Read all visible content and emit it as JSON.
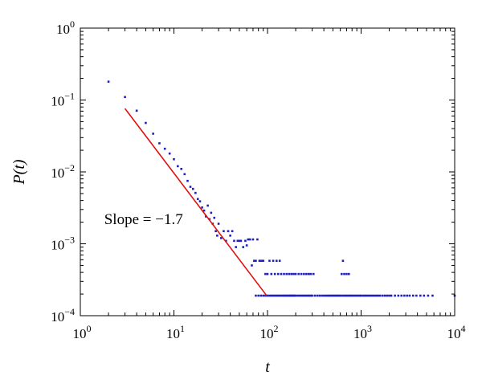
{
  "chart_data": {
    "type": "scatter",
    "title": "",
    "xlabel": "t",
    "ylabel": "P(t)",
    "x_scale": "log",
    "y_scale": "log",
    "xlim": [
      1,
      10000
    ],
    "ylim": [
      0.0001,
      1
    ],
    "grid": false,
    "x_ticks": [
      {
        "base": "10",
        "exp": "0",
        "value": 1
      },
      {
        "base": "10",
        "exp": "1",
        "value": 10
      },
      {
        "base": "10",
        "exp": "2",
        "value": 100
      },
      {
        "base": "10",
        "exp": "3",
        "value": 1000
      },
      {
        "base": "10",
        "exp": "4",
        "value": 10000
      }
    ],
    "y_ticks": [
      {
        "base": "10",
        "exp": "0",
        "value": 1
      },
      {
        "base": "10",
        "exp": "−1",
        "value": 0.1
      },
      {
        "base": "10",
        "exp": "−2",
        "value": 0.01
      },
      {
        "base": "10",
        "exp": "−3",
        "value": 0.001
      },
      {
        "base": "10",
        "exp": "−4",
        "value": 0.0001
      }
    ],
    "points": [
      [
        2,
        0.18
      ],
      [
        3,
        0.11
      ],
      [
        4,
        0.071
      ],
      [
        5,
        0.048
      ],
      [
        6,
        0.034
      ],
      [
        7,
        0.025
      ],
      [
        8,
        0.021
      ],
      [
        9,
        0.018
      ],
      [
        10,
        0.015
      ],
      [
        11,
        0.012
      ],
      [
        12,
        0.011
      ],
      [
        13,
        0.0093
      ],
      [
        14,
        0.0075
      ],
      [
        15,
        0.0062
      ],
      [
        16,
        0.0058
      ],
      [
        17,
        0.0051
      ],
      [
        18,
        0.0042
      ],
      [
        19,
        0.0039
      ],
      [
        20,
        0.0032
      ],
      [
        21,
        0.0029
      ],
      [
        22,
        0.0024
      ],
      [
        23,
        0.0034
      ],
      [
        24,
        0.0022
      ],
      [
        25,
        0.0027
      ],
      [
        26,
        0.0019
      ],
      [
        27,
        0.0023
      ],
      [
        28,
        0.0015
      ],
      [
        29,
        0.0013
      ],
      [
        30,
        0.0019
      ],
      [
        32,
        0.0012
      ],
      [
        34,
        0.0015
      ],
      [
        36,
        0.0011
      ],
      [
        38,
        0.0015
      ],
      [
        40,
        0.0013
      ],
      [
        42,
        0.0015
      ],
      [
        44,
        0.0011
      ],
      [
        46,
        0.0009
      ],
      [
        48,
        0.0011
      ],
      [
        50,
        0.0011
      ],
      [
        52,
        0.0011
      ],
      [
        55,
        0.0009
      ],
      [
        58,
        0.0011
      ],
      [
        60,
        0.00095
      ],
      [
        62,
        0.00115
      ],
      [
        65,
        0.00115
      ],
      [
        68,
        0.0005
      ],
      [
        70,
        0.00115
      ],
      [
        72,
        0.00058
      ],
      [
        75,
        0.00058
      ],
      [
        78,
        0.00115
      ],
      [
        82,
        0.00058
      ],
      [
        86,
        0.00058
      ],
      [
        90,
        0.00058
      ],
      [
        95,
        0.00038
      ],
      [
        100,
        0.00038
      ],
      [
        105,
        0.00058
      ],
      [
        110,
        0.00038
      ],
      [
        115,
        0.00058
      ],
      [
        120,
        0.00038
      ],
      [
        125,
        0.00058
      ],
      [
        130,
        0.00038
      ],
      [
        135,
        0.00058
      ],
      [
        140,
        0.00038
      ],
      [
        150,
        0.00038
      ],
      [
        160,
        0.00038
      ],
      [
        170,
        0.00038
      ],
      [
        180,
        0.00038
      ],
      [
        190,
        0.00038
      ],
      [
        200,
        0.00038
      ],
      [
        215,
        0.00038
      ],
      [
        230,
        0.00038
      ],
      [
        245,
        0.00038
      ],
      [
        260,
        0.00038
      ],
      [
        275,
        0.00038
      ],
      [
        290,
        0.00038
      ],
      [
        310,
        0.00038
      ],
      [
        640,
        0.00058
      ],
      [
        620,
        0.00038
      ],
      [
        660,
        0.00038
      ],
      [
        700,
        0.00038
      ],
      [
        740,
        0.00038
      ],
      [
        75,
        0.00019
      ],
      [
        80,
        0.00019
      ],
      [
        85,
        0.00019
      ],
      [
        90,
        0.00019
      ],
      [
        95,
        0.00019
      ],
      [
        100,
        0.00019
      ],
      [
        105,
        0.00019
      ],
      [
        110,
        0.00019
      ],
      [
        115,
        0.00019
      ],
      [
        120,
        0.00019
      ],
      [
        125,
        0.00019
      ],
      [
        130,
        0.00019
      ],
      [
        135,
        0.00019
      ],
      [
        140,
        0.00019
      ],
      [
        145,
        0.00019
      ],
      [
        150,
        0.00019
      ],
      [
        155,
        0.00019
      ],
      [
        160,
        0.00019
      ],
      [
        165,
        0.00019
      ],
      [
        170,
        0.00019
      ],
      [
        175,
        0.00019
      ],
      [
        180,
        0.00019
      ],
      [
        185,
        0.00019
      ],
      [
        190,
        0.00019
      ],
      [
        195,
        0.00019
      ],
      [
        200,
        0.00019
      ],
      [
        210,
        0.00019
      ],
      [
        220,
        0.00019
      ],
      [
        230,
        0.00019
      ],
      [
        240,
        0.00019
      ],
      [
        250,
        0.00019
      ],
      [
        260,
        0.00019
      ],
      [
        270,
        0.00019
      ],
      [
        280,
        0.00019
      ],
      [
        290,
        0.00019
      ],
      [
        300,
        0.00019
      ],
      [
        320,
        0.00019
      ],
      [
        340,
        0.00019
      ],
      [
        360,
        0.00019
      ],
      [
        380,
        0.00019
      ],
      [
        400,
        0.00019
      ],
      [
        420,
        0.00019
      ],
      [
        440,
        0.00019
      ],
      [
        460,
        0.00019
      ],
      [
        480,
        0.00019
      ],
      [
        500,
        0.00019
      ],
      [
        520,
        0.00019
      ],
      [
        540,
        0.00019
      ],
      [
        560,
        0.00019
      ],
      [
        580,
        0.00019
      ],
      [
        600,
        0.00019
      ],
      [
        630,
        0.00019
      ],
      [
        660,
        0.00019
      ],
      [
        690,
        0.00019
      ],
      [
        720,
        0.00019
      ],
      [
        750,
        0.00019
      ],
      [
        780,
        0.00019
      ],
      [
        810,
        0.00019
      ],
      [
        850,
        0.00019
      ],
      [
        890,
        0.00019
      ],
      [
        930,
        0.00019
      ],
      [
        970,
        0.00019
      ],
      [
        1000,
        0.00019
      ],
      [
        1050,
        0.00019
      ],
      [
        1100,
        0.00019
      ],
      [
        1150,
        0.00019
      ],
      [
        1200,
        0.00019
      ],
      [
        1260,
        0.00019
      ],
      [
        1320,
        0.00019
      ],
      [
        1380,
        0.00019
      ],
      [
        1450,
        0.00019
      ],
      [
        1520,
        0.00019
      ],
      [
        1600,
        0.00019
      ],
      [
        1700,
        0.00019
      ],
      [
        1800,
        0.00019
      ],
      [
        1900,
        0.00019
      ],
      [
        2000,
        0.00019
      ],
      [
        2100,
        0.00019
      ],
      [
        2300,
        0.00019
      ],
      [
        2500,
        0.00019
      ],
      [
        2700,
        0.00019
      ],
      [
        2900,
        0.00019
      ],
      [
        3100,
        0.00019
      ],
      [
        3300,
        0.00019
      ],
      [
        3600,
        0.00019
      ],
      [
        3900,
        0.00019
      ],
      [
        4300,
        0.00019
      ],
      [
        4700,
        0.00019
      ],
      [
        5200,
        0.00019
      ],
      [
        5800,
        0.00019
      ],
      [
        10000,
        0.00019
      ]
    ],
    "fit_line": {
      "x": [
        3,
        98
      ],
      "y": [
        0.076,
        0.00019
      ]
    },
    "annotation": "Slope = −1.7",
    "annotation_x": 1.8,
    "annotation_y": 0.0022,
    "colors": {
      "points": "#1f1fbf",
      "fit_line": "#e01010",
      "axes": "#000000"
    }
  }
}
